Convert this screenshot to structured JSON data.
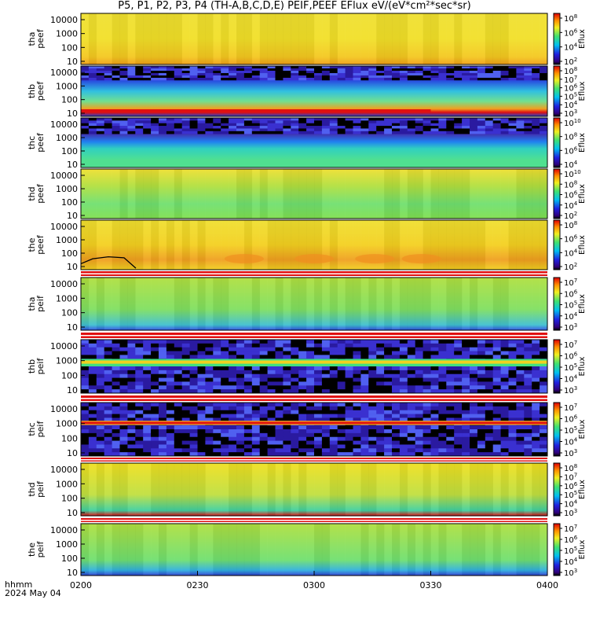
{
  "title": "P5, P1, P2, P3, P4 (TH-A,B,C,D,E) PEIF,PEEF EFlux eV/(eV*cm²*sec*sr)",
  "footer": {
    "line1": "hhmm",
    "line2": "2024 May 04"
  },
  "x_axis": {
    "ticks": [
      "0200",
      "0230",
      "0300",
      "0330",
      "0400"
    ],
    "range": [
      "02:00",
      "04:00"
    ]
  },
  "colorbar_label": "Eflux",
  "chart_data": [
    {
      "type": "heatmap",
      "ylabel": [
        "tha",
        "peef"
      ],
      "y_ticks": [
        "10",
        "100",
        "1000",
        "10000"
      ],
      "y_scale": "log",
      "colorbar_ticks": [
        "10^2",
        "10^4",
        "10^6",
        "10^8"
      ],
      "style": "yellow",
      "colors": {
        "base": "#f4e020"
      }
    },
    {
      "type": "heatmap",
      "ylabel": [
        "thb",
        "peef"
      ],
      "y_ticks": [
        "10",
        "100",
        "1000",
        "10000"
      ],
      "y_scale": "log",
      "colorbar_ticks": [
        "10^3",
        "10^4",
        "10^5",
        "10^6",
        "10^7",
        "10^8"
      ],
      "style": "blue-bands",
      "colors": {
        "base": "#2030c8"
      }
    },
    {
      "type": "heatmap",
      "ylabel": [
        "thc",
        "peef"
      ],
      "y_ticks": [
        "10",
        "100",
        "1000",
        "10000"
      ],
      "y_scale": "log",
      "colorbar_ticks": [
        "10^4",
        "10^6",
        "10^8",
        "10^10"
      ],
      "style": "purple-top",
      "colors": {
        "base": "#4020a0"
      }
    },
    {
      "type": "heatmap",
      "ylabel": [
        "thd",
        "peef"
      ],
      "y_ticks": [
        "10",
        "100",
        "1000",
        "10000"
      ],
      "y_scale": "log",
      "colorbar_ticks": [
        "10^2",
        "10^4",
        "10^6",
        "10^8",
        "10^10"
      ],
      "style": "green",
      "colors": {
        "base": "#80e040"
      }
    },
    {
      "type": "heatmap",
      "ylabel": [
        "the",
        "peef"
      ],
      "y_ticks": [
        "10",
        "100",
        "1000",
        "10000"
      ],
      "y_scale": "log",
      "colorbar_ticks": [
        "10^2",
        "10^4",
        "10^6",
        "10^8"
      ],
      "style": "yellow-orange",
      "colors": {
        "base": "#f0d020"
      }
    },
    {
      "type": "heatmap",
      "ylabel": [
        "tha",
        "peif"
      ],
      "y_ticks": [
        "10",
        "100",
        "1000",
        "10000"
      ],
      "y_scale": "log",
      "colorbar_ticks": [
        "10^3",
        "10^4",
        "10^5",
        "10^6",
        "10^7"
      ],
      "style": "green-yellow",
      "colors": {
        "base": "#b0e030"
      }
    },
    {
      "type": "heatmap",
      "ylabel": [
        "thb",
        "peif"
      ],
      "y_ticks": [
        "10",
        "100",
        "1000",
        "10000"
      ],
      "y_scale": "log",
      "colorbar_ticks": [
        "10^3",
        "10^4",
        "10^5",
        "10^6",
        "10^7"
      ],
      "style": "noise-band",
      "colors": {
        "base": "#2020a0"
      }
    },
    {
      "type": "heatmap",
      "ylabel": [
        "thc",
        "peif"
      ],
      "y_ticks": [
        "10",
        "100",
        "1000",
        "10000"
      ],
      "y_scale": "log",
      "colorbar_ticks": [
        "10^3",
        "10^4",
        "10^5",
        "10^6",
        "10^7"
      ],
      "style": "noise-red",
      "colors": {
        "base": "#2020a0"
      }
    },
    {
      "type": "heatmap",
      "ylabel": [
        "thd",
        "peif"
      ],
      "y_ticks": [
        "10",
        "100",
        "1000",
        "10000"
      ],
      "y_scale": "log",
      "colorbar_ticks": [
        "10^3",
        "10^4",
        "10^5",
        "10^6",
        "10^7",
        "10^8"
      ],
      "style": "yellow-green",
      "colors": {
        "base": "#e0e020"
      }
    },
    {
      "type": "heatmap",
      "ylabel": [
        "the",
        "peif"
      ],
      "y_ticks": [
        "10",
        "100",
        "1000",
        "10000"
      ],
      "y_scale": "log",
      "colorbar_ticks": [
        "10^3",
        "10^4",
        "10^5",
        "10^6",
        "10^7"
      ],
      "style": "green-cyan",
      "colors": {
        "base": "#a0e040"
      }
    }
  ]
}
